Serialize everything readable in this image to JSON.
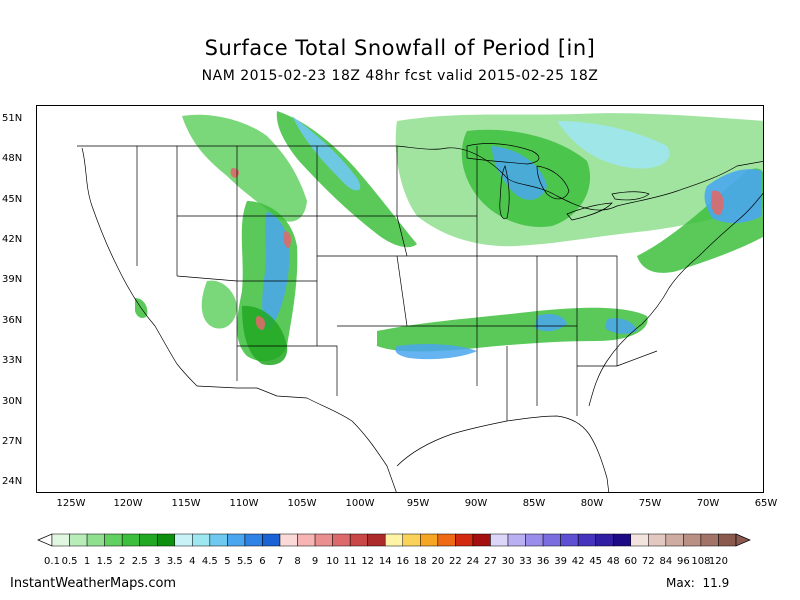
{
  "title": "Surface Total Snowfall of Period [in]",
  "subtitle": "NAM 2015-02-23 18Z 48hr fcst valid 2015-02-25 18Z",
  "lat_labels": [
    "51N",
    "48N",
    "45N",
    "42N",
    "39N",
    "36N",
    "33N",
    "30N",
    "27N",
    "24N"
  ],
  "lon_labels": [
    "125W",
    "120W",
    "115W",
    "110W",
    "105W",
    "100W",
    "95W",
    "90W",
    "85W",
    "80W",
    "75W",
    "70W",
    "65W"
  ],
  "colorbar": {
    "labels": [
      "0.1",
      "0.5",
      "1",
      "1.5",
      "2",
      "2.5",
      "3",
      "3.5",
      "4",
      "4.5",
      "5",
      "5.5",
      "6",
      "7",
      "8",
      "9",
      "10",
      "11",
      "12",
      "14",
      "16",
      "18",
      "20",
      "22",
      "24",
      "27",
      "30",
      "33",
      "36",
      "39",
      "42",
      "45",
      "48",
      "60",
      "72",
      "84",
      "96",
      "108",
      "120"
    ],
    "colors": [
      "#e1f7e1",
      "#b8ecb8",
      "#8fdf8f",
      "#63d063",
      "#3dbf3d",
      "#22a822",
      "#0f8f0f",
      "#c8f2f6",
      "#9ee6f0",
      "#6fc8f0",
      "#4aa6ee",
      "#2f82e6",
      "#1b62d4",
      "#fcd9d9",
      "#f6b4b4",
      "#ea8f8f",
      "#dd6a6a",
      "#c94747",
      "#ac2a2a",
      "#fff3a6",
      "#fad25a",
      "#f5a623",
      "#ee6a14",
      "#d12a0e",
      "#a30e0e",
      "#dcd6f8",
      "#b9b0f2",
      "#9a8ceb",
      "#7b6de0",
      "#5f4fd2",
      "#4634bd",
      "#301fa3",
      "#1d0a85",
      "#f3e3de",
      "#e2c8c0",
      "#cfaca2",
      "#ba9084",
      "#a27468",
      "#8a5a4e"
    ]
  },
  "footer": {
    "source": "InstantWeatherMaps.com",
    "max_label": "Max:",
    "max_value": "11.9"
  }
}
